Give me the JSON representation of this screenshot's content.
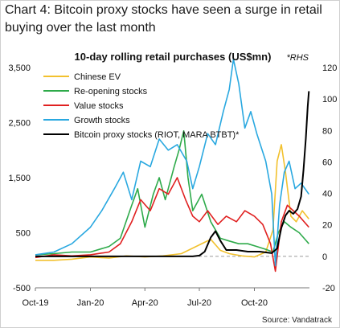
{
  "header": {
    "title_line1": "Chart 4: Bitcoin proxy stocks have seen a surge in retail",
    "title_line2": "buying over the last month"
  },
  "footer": {
    "source": "Source: Vandatrack"
  },
  "chart_data": {
    "type": "line",
    "title": "10-day rolling retail purchases (US$mn)",
    "rhs_note": "*RHS",
    "x_ticks": [
      "Oct-19",
      "Jan-20",
      "Apr-20",
      "Jul-20",
      "Oct-20"
    ],
    "xlim": [
      "2019-10-01",
      "2021-01-01"
    ],
    "y_left": {
      "ticks": [
        -500,
        500,
        1500,
        2500,
        3500
      ],
      "lim": [
        -500,
        3500
      ]
    },
    "y_right": {
      "ticks": [
        -20,
        0,
        20,
        40,
        60,
        80,
        100,
        120
      ],
      "lim": [
        -20,
        120
      ]
    },
    "grid": false,
    "legend_position": "top-left",
    "series": [
      {
        "name": "Chinese EV",
        "axis": "left",
        "color": "#f2c12e",
        "points": [
          [
            "2019-10-01",
            0
          ],
          [
            "2019-11-01",
            0
          ],
          [
            "2019-12-01",
            20
          ],
          [
            "2020-01-01",
            60
          ],
          [
            "2020-02-01",
            40
          ],
          [
            "2020-03-01",
            80
          ],
          [
            "2020-04-01",
            60
          ],
          [
            "2020-05-01",
            80
          ],
          [
            "2020-06-01",
            120
          ],
          [
            "2020-07-01",
            280
          ],
          [
            "2020-07-20",
            380
          ],
          [
            "2020-08-05",
            180
          ],
          [
            "2020-08-20",
            120
          ],
          [
            "2020-09-10",
            80
          ],
          [
            "2020-10-01",
            60
          ],
          [
            "2020-10-20",
            150
          ],
          [
            "2020-11-01",
            550
          ],
          [
            "2020-11-08",
            1800
          ],
          [
            "2020-11-15",
            2100
          ],
          [
            "2020-11-22",
            1600
          ],
          [
            "2020-12-01",
            800
          ],
          [
            "2020-12-10",
            700
          ],
          [
            "2020-12-20",
            900
          ],
          [
            "2020-12-31",
            750
          ]
        ]
      },
      {
        "name": "Re-opening stocks",
        "axis": "left",
        "color": "#2eaa4a",
        "points": [
          [
            "2019-10-01",
            100
          ],
          [
            "2019-11-01",
            120
          ],
          [
            "2019-12-01",
            150
          ],
          [
            "2020-01-01",
            150
          ],
          [
            "2020-02-01",
            250
          ],
          [
            "2020-02-20",
            400
          ],
          [
            "2020-03-10",
            1000
          ],
          [
            "2020-03-20",
            1300
          ],
          [
            "2020-04-01",
            600
          ],
          [
            "2020-04-15",
            1200
          ],
          [
            "2020-04-25",
            1500
          ],
          [
            "2020-05-05",
            1100
          ],
          [
            "2020-05-20",
            1700
          ],
          [
            "2020-05-28",
            2000
          ],
          [
            "2020-06-05",
            2350
          ],
          [
            "2020-06-12",
            1500
          ],
          [
            "2020-06-20",
            900
          ],
          [
            "2020-07-05",
            1200
          ],
          [
            "2020-07-20",
            700
          ],
          [
            "2020-08-05",
            400
          ],
          [
            "2020-08-20",
            350
          ],
          [
            "2020-09-05",
            300
          ],
          [
            "2020-09-20",
            300
          ],
          [
            "2020-10-05",
            250
          ],
          [
            "2020-10-20",
            200
          ],
          [
            "2020-11-01",
            150
          ],
          [
            "2020-11-10",
            500
          ],
          [
            "2020-11-20",
            700
          ],
          [
            "2020-12-01",
            600
          ],
          [
            "2020-12-15",
            500
          ],
          [
            "2020-12-31",
            300
          ]
        ]
      },
      {
        "name": "Value stocks",
        "axis": "left",
        "color": "#e02020",
        "points": [
          [
            "2019-10-01",
            50
          ],
          [
            "2019-11-01",
            100
          ],
          [
            "2019-12-01",
            80
          ],
          [
            "2020-01-01",
            100
          ],
          [
            "2020-02-01",
            150
          ],
          [
            "2020-02-20",
            300
          ],
          [
            "2020-03-10",
            700
          ],
          [
            "2020-03-25",
            1100
          ],
          [
            "2020-04-10",
            900
          ],
          [
            "2020-04-25",
            1300
          ],
          [
            "2020-05-10",
            1200
          ],
          [
            "2020-05-25",
            1500
          ],
          [
            "2020-06-08",
            1100
          ],
          [
            "2020-06-20",
            800
          ],
          [
            "2020-07-01",
            700
          ],
          [
            "2020-07-15",
            900
          ],
          [
            "2020-08-01",
            650
          ],
          [
            "2020-08-15",
            800
          ],
          [
            "2020-09-01",
            700
          ],
          [
            "2020-09-15",
            900
          ],
          [
            "2020-10-01",
            800
          ],
          [
            "2020-10-15",
            650
          ],
          [
            "2020-10-28",
            300
          ],
          [
            "2020-11-05",
            -200
          ],
          [
            "2020-11-15",
            700
          ],
          [
            "2020-11-25",
            1000
          ],
          [
            "2020-12-05",
            900
          ],
          [
            "2020-12-15",
            800
          ],
          [
            "2020-12-31",
            600
          ]
        ]
      },
      {
        "name": "Growth stocks",
        "axis": "left",
        "color": "#29a8e0",
        "points": [
          [
            "2019-10-01",
            100
          ],
          [
            "2019-11-01",
            150
          ],
          [
            "2019-12-01",
            300
          ],
          [
            "2020-01-01",
            600
          ],
          [
            "2020-01-20",
            900
          ],
          [
            "2020-02-10",
            1300
          ],
          [
            "2020-02-25",
            1600
          ],
          [
            "2020-03-10",
            1100
          ],
          [
            "2020-03-25",
            1800
          ],
          [
            "2020-04-10",
            1700
          ],
          [
            "2020-04-25",
            2200
          ],
          [
            "2020-05-10",
            2000
          ],
          [
            "2020-05-25",
            2100
          ],
          [
            "2020-06-10",
            1800
          ],
          [
            "2020-06-20",
            1300
          ],
          [
            "2020-07-01",
            1700
          ],
          [
            "2020-07-15",
            2300
          ],
          [
            "2020-07-28",
            2100
          ],
          [
            "2020-08-10",
            2700
          ],
          [
            "2020-08-20",
            3100
          ],
          [
            "2020-08-27",
            3650
          ],
          [
            "2020-09-05",
            3200
          ],
          [
            "2020-09-15",
            2400
          ],
          [
            "2020-09-25",
            2700
          ],
          [
            "2020-10-05",
            2300
          ],
          [
            "2020-10-20",
            1800
          ],
          [
            "2020-10-30",
            1200
          ],
          [
            "2020-11-05",
            -100
          ],
          [
            "2020-11-12",
            1000
          ],
          [
            "2020-11-20",
            1600
          ],
          [
            "2020-11-28",
            1800
          ],
          [
            "2020-12-08",
            1300
          ],
          [
            "2020-12-18",
            1400
          ],
          [
            "2020-12-31",
            1200
          ]
        ]
      },
      {
        "name": "Bitcoin proxy stocks (RIOT, MARA BTBT)*",
        "axis": "right",
        "color": "#000000",
        "points": [
          [
            "2019-10-01",
            0
          ],
          [
            "2019-12-01",
            0
          ],
          [
            "2020-01-01",
            0
          ],
          [
            "2020-03-01",
            0
          ],
          [
            "2020-05-01",
            0
          ],
          [
            "2020-06-20",
            0
          ],
          [
            "2020-07-01",
            0.5
          ],
          [
            "2020-07-10",
            3
          ],
          [
            "2020-07-20",
            12
          ],
          [
            "2020-07-28",
            16
          ],
          [
            "2020-08-05",
            10
          ],
          [
            "2020-08-15",
            4
          ],
          [
            "2020-09-01",
            4
          ],
          [
            "2020-09-20",
            3
          ],
          [
            "2020-10-10",
            3
          ],
          [
            "2020-10-30",
            2
          ],
          [
            "2020-11-08",
            5
          ],
          [
            "2020-11-15",
            18
          ],
          [
            "2020-11-22",
            26
          ],
          [
            "2020-11-28",
            29
          ],
          [
            "2020-12-05",
            27
          ],
          [
            "2020-12-12",
            30
          ],
          [
            "2020-12-18",
            38
          ],
          [
            "2020-12-22",
            55
          ],
          [
            "2020-12-26",
            75
          ],
          [
            "2020-12-29",
            95
          ],
          [
            "2020-12-31",
            105
          ]
        ]
      }
    ]
  }
}
